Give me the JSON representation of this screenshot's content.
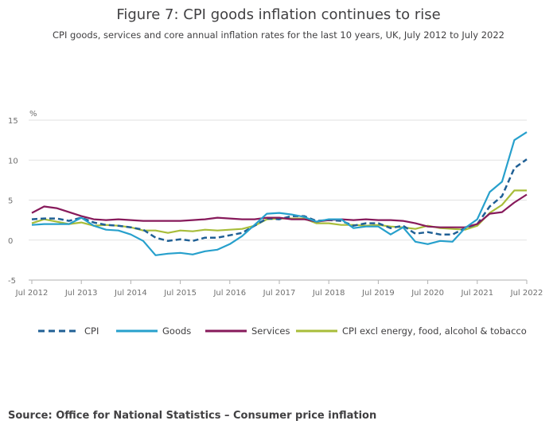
{
  "chart_data": {
    "type": "line",
    "title": "Figure 7: CPI goods inflation continues to rise",
    "subtitle": "CPI goods, services and core annual inflation rates for the last 10 years, UK, July 2012 to July 2022",
    "y_label": "%",
    "source": "Source: Office for National Statistics – Consumer price inflation",
    "x": [
      "2012-07",
      "2012-10",
      "2013-01",
      "2013-04",
      "2013-07",
      "2013-10",
      "2014-01",
      "2014-04",
      "2014-07",
      "2014-10",
      "2015-01",
      "2015-04",
      "2015-07",
      "2015-10",
      "2016-01",
      "2016-04",
      "2016-07",
      "2016-10",
      "2017-01",
      "2017-04",
      "2017-07",
      "2017-10",
      "2018-01",
      "2018-04",
      "2018-07",
      "2018-10",
      "2019-01",
      "2019-04",
      "2019-07",
      "2019-10",
      "2020-01",
      "2020-04",
      "2020-07",
      "2020-10",
      "2021-01",
      "2021-04",
      "2021-07",
      "2021-10",
      "2022-01",
      "2022-04",
      "2022-07"
    ],
    "xlim": [
      "2012-07",
      "2022-07"
    ],
    "xticks": [
      {
        "value": "2012-07",
        "label": "Jul 2012"
      },
      {
        "value": "2013-07",
        "label": "Jul 2013"
      },
      {
        "value": "2014-07",
        "label": "Jul 2014"
      },
      {
        "value": "2015-07",
        "label": "Jul 2015"
      },
      {
        "value": "2016-07",
        "label": "Jul 2016"
      },
      {
        "value": "2017-07",
        "label": "Jul 2017"
      },
      {
        "value": "2018-07",
        "label": "Jul 2018"
      },
      {
        "value": "2019-07",
        "label": "Jul 2019"
      },
      {
        "value": "2020-07",
        "label": "Jul 2020"
      },
      {
        "value": "2021-07",
        "label": "Jul 2021"
      },
      {
        "value": "2022-07",
        "label": "Jul 2022"
      }
    ],
    "ylim": [
      -5,
      15
    ],
    "yticks": [
      -5,
      0,
      5,
      10,
      15
    ],
    "grid": true,
    "legend": "bottom",
    "series": [
      {
        "name": "CPI",
        "color": "#206095",
        "dash": true,
        "values": [
          2.6,
          2.7,
          2.7,
          2.4,
          2.8,
          2.2,
          1.9,
          1.8,
          1.6,
          1.3,
          0.3,
          -0.1,
          0.1,
          -0.1,
          0.3,
          0.3,
          0.6,
          0.9,
          1.8,
          2.7,
          2.6,
          3.0,
          3.0,
          2.4,
          2.5,
          2.4,
          1.8,
          2.1,
          2.1,
          1.5,
          1.8,
          0.8,
          1.0,
          0.7,
          0.7,
          1.5,
          2.0,
          4.2,
          5.5,
          9.0,
          10.1
        ]
      },
      {
        "name": "Goods",
        "color": "#27a0cc",
        "dash": false,
        "values": [
          1.9,
          2.0,
          2.0,
          2.0,
          2.8,
          1.8,
          1.3,
          1.2,
          0.7,
          -0.1,
          -1.9,
          -1.7,
          -1.6,
          -1.8,
          -1.4,
          -1.2,
          -0.5,
          0.5,
          1.9,
          3.3,
          3.4,
          3.2,
          2.9,
          2.3,
          2.6,
          2.6,
          1.5,
          1.7,
          1.7,
          0.7,
          1.6,
          -0.2,
          -0.5,
          -0.1,
          -0.2,
          1.5,
          2.6,
          6.0,
          7.3,
          12.5,
          13.5
        ]
      },
      {
        "name": "Services",
        "color": "#871a5b",
        "dash": false,
        "values": [
          3.4,
          4.2,
          4.0,
          3.5,
          3.0,
          2.6,
          2.5,
          2.6,
          2.5,
          2.4,
          2.4,
          2.4,
          2.4,
          2.5,
          2.6,
          2.8,
          2.7,
          2.6,
          2.6,
          2.8,
          2.8,
          2.6,
          2.6,
          2.3,
          2.5,
          2.6,
          2.5,
          2.6,
          2.5,
          2.5,
          2.4,
          2.1,
          1.7,
          1.6,
          1.6,
          1.6,
          2.0,
          3.3,
          3.5,
          4.7,
          5.7
        ]
      },
      {
        "name": "CPI excl energy, food, alcohol & tobacco",
        "color": "#a8bd3a",
        "dash": false,
        "values": [
          2.1,
          2.6,
          2.3,
          2.0,
          2.2,
          1.8,
          1.9,
          1.8,
          1.6,
          1.2,
          1.2,
          0.9,
          1.2,
          1.1,
          1.3,
          1.2,
          1.3,
          1.4,
          1.8,
          2.6,
          2.7,
          2.7,
          2.7,
          2.1,
          2.1,
          1.9,
          1.9,
          1.8,
          1.9,
          1.7,
          1.6,
          1.4,
          1.8,
          1.5,
          1.4,
          1.3,
          1.8,
          3.4,
          4.4,
          6.2,
          6.2
        ]
      }
    ]
  }
}
